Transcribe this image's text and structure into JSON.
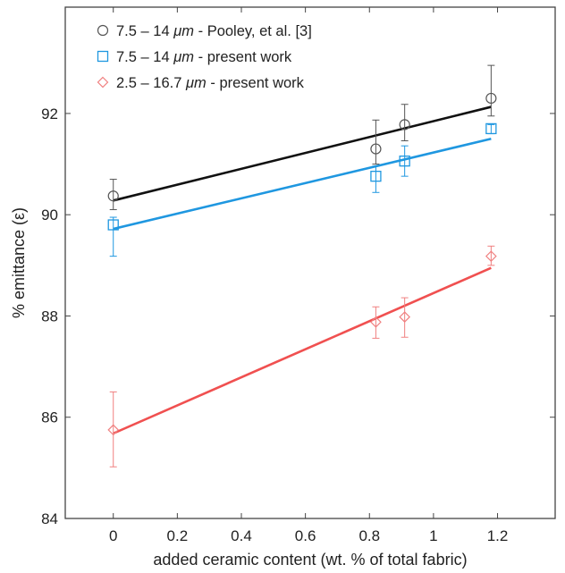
{
  "chart_data": {
    "type": "scatter",
    "xlabel": "added ceramic content (wt. % of total fabric)",
    "ylabel": "% emittance (ε)",
    "xlim": [
      -0.15,
      1.38
    ],
    "ylim": [
      84,
      94.1
    ],
    "xticks": [
      0,
      0.2,
      0.4,
      0.6,
      0.8,
      1,
      1.2
    ],
    "xtick_labels": [
      "0",
      "0.2",
      "0.4",
      "0.6",
      "0.8",
      "1",
      "1.2"
    ],
    "yticks": [
      84,
      86,
      88,
      90,
      92
    ],
    "ytick_labels": [
      "84",
      "86",
      "88",
      "90",
      "92"
    ],
    "grid": false,
    "legend_position": "top-left",
    "series": [
      {
        "name": "7.5 – 14 μm - Pooley, et al. [3]",
        "legend_parts": [
          "7.5 – 14 ",
          "μm",
          " - Pooley, et al. [3]"
        ],
        "marker": "circle",
        "marker_color": "#555555",
        "line_color": "#111111",
        "x": [
          0,
          0.82,
          0.91,
          1.18
        ],
        "y": [
          90.37,
          91.3,
          91.78,
          92.3
        ],
        "err_low": [
          0.27,
          0.3,
          0.32,
          0.35
        ],
        "err_high": [
          0.33,
          0.57,
          0.4,
          0.65
        ],
        "fit": [
          [
            0,
            90.28
          ],
          [
            1.18,
            92.13
          ]
        ]
      },
      {
        "name": "7.5 – 14 μm - present work",
        "legend_parts": [
          "7.5 – 14 ",
          "μm",
          " - present work"
        ],
        "marker": "square",
        "marker_color": "#1f97e0",
        "line_color": "#1f97e0",
        "x": [
          0,
          0.82,
          0.91,
          1.18
        ],
        "y": [
          89.8,
          90.76,
          91.06,
          91.7
        ],
        "err_low": [
          0.62,
          0.32,
          0.3,
          0.1
        ],
        "err_high": [
          0.15,
          0.2,
          0.3,
          0.08
        ],
        "fit": [
          [
            0,
            89.72
          ],
          [
            1.18,
            91.5
          ]
        ]
      },
      {
        "name": "2.5 – 16.7 μm - present work",
        "legend_parts": [
          "2.5 – 16.7 ",
          "μm",
          " - present work"
        ],
        "marker": "diamond",
        "marker_color": "#f08080",
        "line_color": "#f05050",
        "x": [
          0,
          0.82,
          0.91,
          1.18
        ],
        "y": [
          85.75,
          87.88,
          87.98,
          89.18
        ],
        "err_low": [
          0.73,
          0.32,
          0.4,
          0.18
        ],
        "err_high": [
          0.75,
          0.3,
          0.38,
          0.2
        ],
        "fit": [
          [
            0,
            85.68
          ],
          [
            1.18,
            88.95
          ]
        ]
      }
    ]
  }
}
